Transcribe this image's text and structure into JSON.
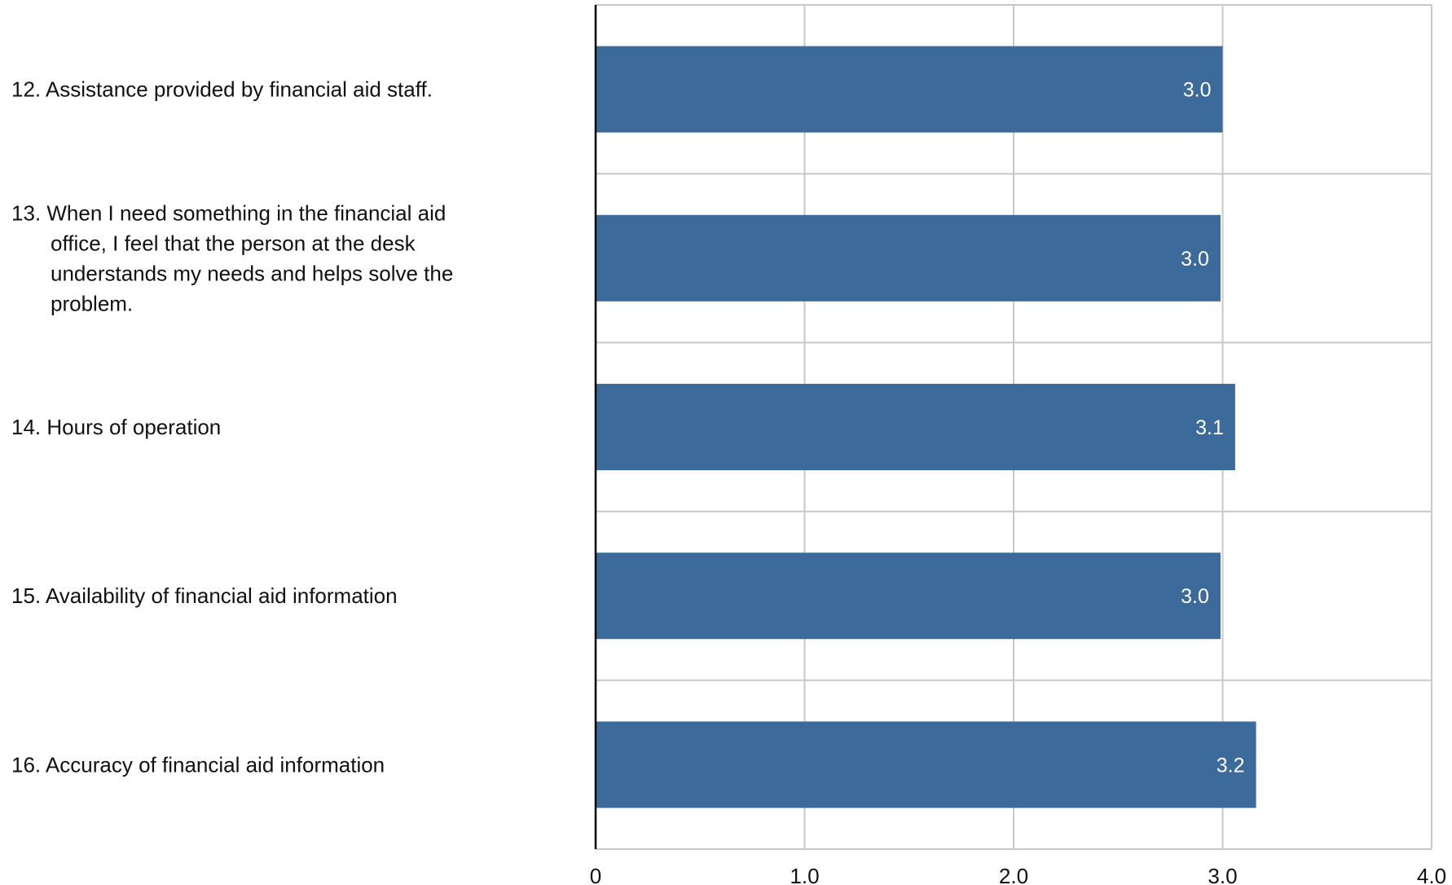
{
  "chart_data": {
    "type": "bar",
    "orientation": "horizontal",
    "categories": [
      [
        "12. Assistance provided by financial aid staff."
      ],
      [
        "13. When I need something in the financial aid",
        "office, I feel that the person at the desk",
        "understands my needs and helps solve the",
        "problem."
      ],
      [
        "14. Hours of operation"
      ],
      [
        "15. Availability of financial aid information"
      ],
      [
        "16. Accuracy of financial aid information"
      ]
    ],
    "values": [
      3.0,
      2.99,
      3.06,
      2.99,
      3.16
    ],
    "data_labels": [
      "3.0",
      "3.0",
      "3.1",
      "3.0",
      "3.2"
    ],
    "xlim": [
      0,
      4
    ],
    "xticks": [
      0,
      1,
      2,
      3,
      4
    ],
    "xtick_labels": [
      "0",
      "1.0",
      "2.0",
      "3.0",
      "4.0"
    ],
    "grid": true,
    "bar_color": "#3c6a9b",
    "grid_color": "#c8c8c8",
    "axis_color": "#000000"
  }
}
